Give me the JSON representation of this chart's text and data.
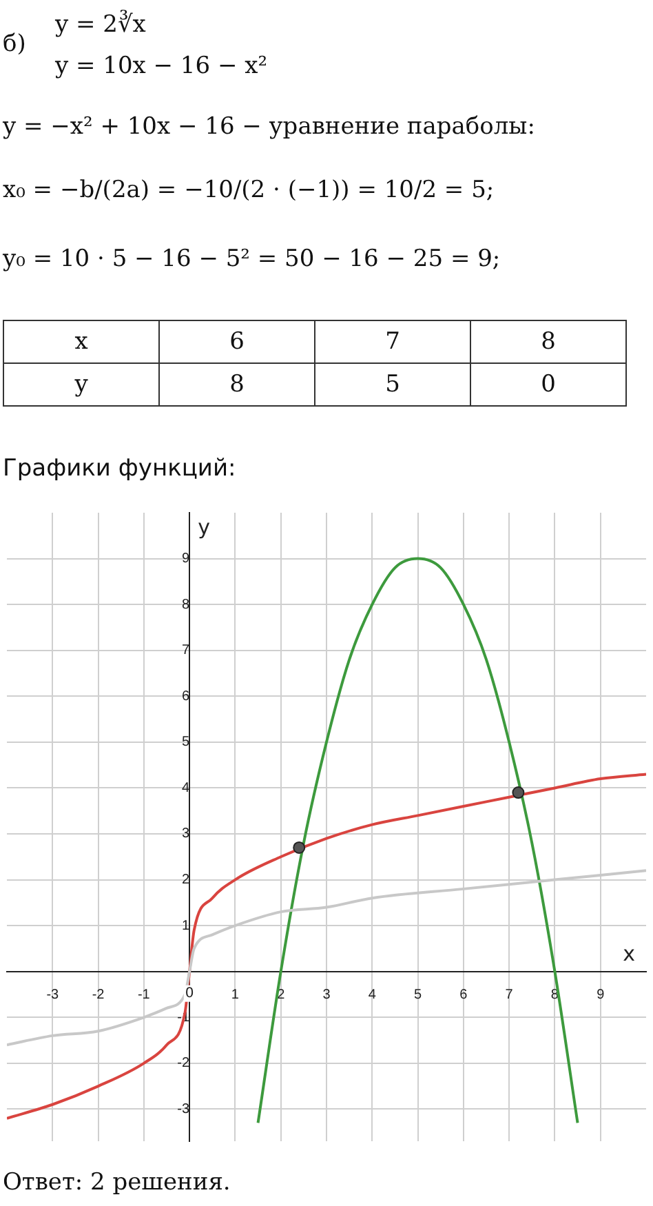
{
  "chart_data": {
    "type": "line",
    "title": "Графики функций:",
    "xlabel": "x",
    "ylabel": "y",
    "annotations": [
      "б)",
      "y = 2∛x",
      "y = 10x − 16 − x²",
      "y = −x² + 10x − 16 − уравнение параболы:",
      "x₀ = −b/(2a) = −10/(2 · (−1)) = 10/2 = 5;",
      "y₀ = 10 · 5 − 16 − 5² = 50 − 16 − 25 = 9;",
      "x",
      "6",
      "7",
      "8",
      "y",
      "8",
      "5",
      "0",
      "Ответ: 2 решения."
    ],
    "xlim": [
      -4,
      10
    ],
    "ylim": [
      -3.7,
      10
    ],
    "xticks": [
      -3,
      -2,
      -1,
      0,
      1,
      2,
      3,
      4,
      5,
      6,
      7,
      8,
      9
    ],
    "yticks": [
      -3,
      -2,
      -1,
      1,
      2,
      3,
      4,
      5,
      6,
      7,
      8,
      9
    ],
    "grid": true,
    "legend": false,
    "marker": "none",
    "series": [
      {
        "color": "#c8c8c8",
        "x": [
          -4,
          -3,
          -2,
          -1,
          -0.5,
          -0.1,
          0,
          0.1,
          0.5,
          1,
          2,
          3,
          4,
          6,
          8,
          10
        ],
        "values": [
          -1.6,
          -1.4,
          -1.3,
          -1,
          -0.8,
          -0.5,
          0,
          0.5,
          0.8,
          1,
          1.3,
          1.4,
          1.6,
          1.8,
          2,
          2.2
        ]
      },
      {
        "color": "#d9443f",
        "x": [
          -4,
          -3,
          -2,
          -1,
          -0.5,
          -0.1,
          0,
          0.1,
          0.5,
          1,
          2,
          3,
          4,
          5,
          6,
          7,
          8,
          9,
          10
        ],
        "values": [
          -3.2,
          -2.9,
          -2.5,
          -2,
          -1.6,
          -0.9,
          0,
          0.9,
          1.6,
          2,
          2.5,
          2.9,
          3.2,
          3.4,
          3.6,
          3.8,
          4,
          4.2,
          4.3
        ]
      },
      {
        "color": "#3d9a3d",
        "x": [
          1.5,
          2,
          2.5,
          3,
          3.5,
          4,
          4.5,
          5,
          5.5,
          6,
          6.5,
          7,
          7.5,
          8,
          8.5
        ],
        "values": [
          -3.3,
          0,
          2.8,
          5,
          6.8,
          8,
          8.8,
          9,
          8.8,
          8,
          6.8,
          5,
          2.8,
          0,
          -3.3
        ]
      },
      {
        "type": "scatter",
        "marker": "circle",
        "color": "#555555",
        "x": [
          2.4,
          7.2
        ],
        "values": [
          2.7,
          3.9
        ]
      }
    ]
  }
}
